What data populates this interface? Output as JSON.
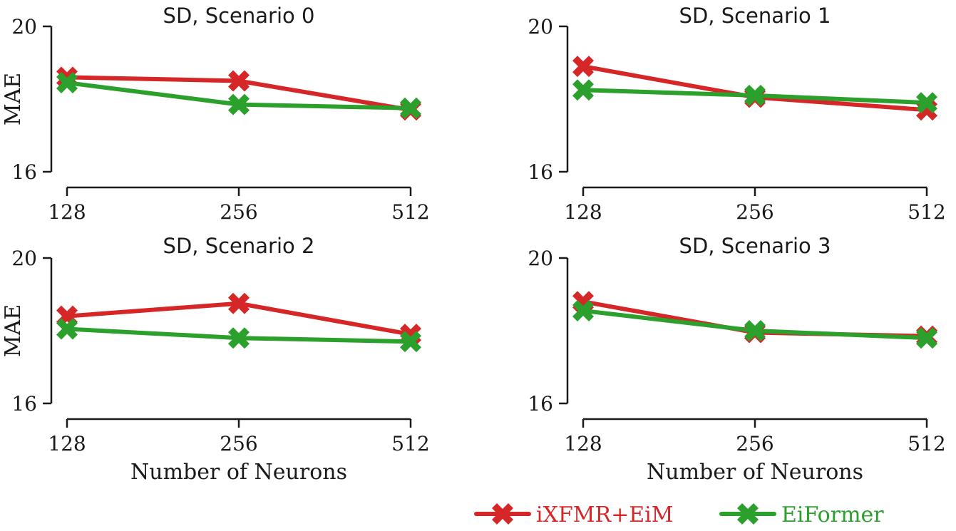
{
  "colors": {
    "ixfmr": "#d62728",
    "eiformer": "#2ca02c",
    "axis": "#1a1a1a"
  },
  "legend": {
    "entries": [
      {
        "label": "iXFMR+EiM",
        "color": "#d62728"
      },
      {
        "label": "EiFormer",
        "color": "#2ca02c"
      }
    ]
  },
  "chart_data": [
    {
      "type": "line",
      "title": "SD, Scenario 0",
      "xlabel": "",
      "ylabel": "MAE",
      "categories": [
        "128",
        "256",
        "512"
      ],
      "ylim": [
        16,
        20
      ],
      "yticks": [
        "20",
        "16"
      ],
      "series": [
        {
          "name": "iXFMR+EiM",
          "values": [
            18.6,
            18.5,
            17.7
          ]
        },
        {
          "name": "EiFormer",
          "values": [
            18.45,
            17.85,
            17.75
          ]
        }
      ]
    },
    {
      "type": "line",
      "title": "SD, Scenario 1",
      "xlabel": "",
      "ylabel": "",
      "categories": [
        "128",
        "256",
        "512"
      ],
      "ylim": [
        16,
        20
      ],
      "yticks": [
        "20",
        "16"
      ],
      "series": [
        {
          "name": "iXFMR+EiM",
          "values": [
            18.9,
            18.05,
            17.7
          ]
        },
        {
          "name": "EiFormer",
          "values": [
            18.25,
            18.1,
            17.9
          ]
        }
      ]
    },
    {
      "type": "line",
      "title": "SD, Scenario 2",
      "xlabel": "Number of Neurons",
      "ylabel": "MAE",
      "categories": [
        "128",
        "256",
        "512"
      ],
      "ylim": [
        16,
        20
      ],
      "yticks": [
        "20",
        "16"
      ],
      "series": [
        {
          "name": "iXFMR+EiM",
          "values": [
            18.4,
            18.75,
            17.9
          ]
        },
        {
          "name": "EiFormer",
          "values": [
            18.05,
            17.8,
            17.7
          ]
        }
      ]
    },
    {
      "type": "line",
      "title": "SD, Scenario 3",
      "xlabel": "Number of Neurons",
      "ylabel": "",
      "categories": [
        "128",
        "256",
        "512"
      ],
      "ylim": [
        16,
        20
      ],
      "yticks": [
        "20",
        "16"
      ],
      "series": [
        {
          "name": "iXFMR+EiM",
          "values": [
            18.8,
            17.95,
            17.85
          ]
        },
        {
          "name": "EiFormer",
          "values": [
            18.55,
            18.0,
            17.8
          ]
        }
      ]
    }
  ]
}
